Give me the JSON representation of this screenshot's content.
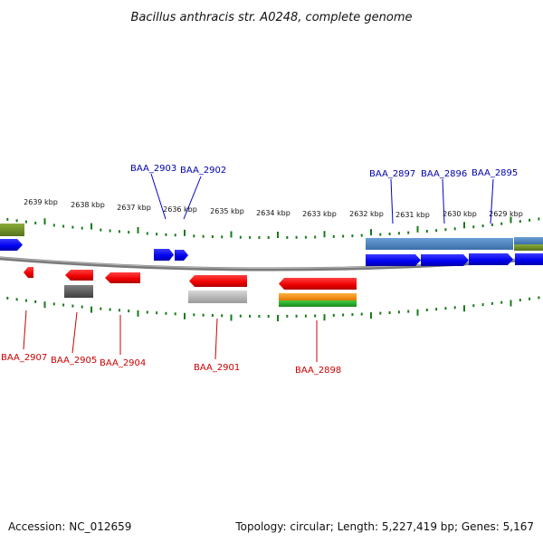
{
  "title": "Bacillus anthracis str. A0248, complete genome",
  "scale_labels": [
    "2639 kbp",
    "2638 kbp",
    "2637 kbp",
    "2636 kbp",
    "2635 kbp",
    "2634 kbp",
    "2633 kbp",
    "2632 kbp",
    "2631 kbp",
    "2630 kbp",
    "2629 kbp"
  ],
  "top_genes": [
    "BAA_2903",
    "BAA_2902",
    "BAA_2897",
    "BAA_2896",
    "BAA_2895"
  ],
  "bottom_genes": [
    "BAA_2907",
    "BAA_2905",
    "BAA_2904",
    "BAA_2901",
    "BAA_2898"
  ],
  "footer": {
    "accession": "Accession: NC_012659",
    "summary": "Topology: circular; Length: 5,227,419 bp; Genes: 5,167"
  },
  "colors": {
    "backbone": "#808080",
    "tick": "#1a7a1a",
    "forward_gene": "#0000ee",
    "reverse_gene": "#ee0000",
    "steel_blue": "#4f86c0",
    "olive": "#6b8e23",
    "grey_gene": "#606060",
    "light_grey_gene": "#b0b0b0",
    "orange": "#ff8c00",
    "green": "#22aa22",
    "top_label": "#0000aa",
    "bottom_label": "#cc0000"
  }
}
